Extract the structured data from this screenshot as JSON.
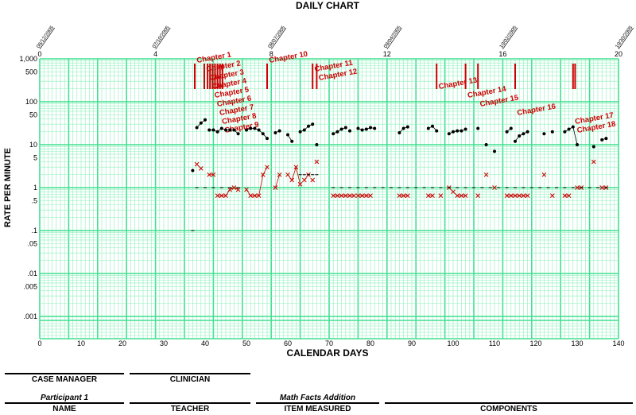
{
  "chart_data": {
    "type": "scatter",
    "title": "DAILY CHART",
    "xlabel": "CALENDAR DAYS",
    "ylabel": "RATE PER MINUTE",
    "xlim": [
      0,
      140
    ],
    "ylim": [
      0.0008,
      1000
    ],
    "y_scale": "log",
    "grid": true,
    "x_ticks": [
      0,
      10,
      20,
      30,
      40,
      50,
      60,
      70,
      80,
      90,
      100,
      110,
      120,
      130,
      140
    ],
    "y_tick_labels": [
      "1,000",
      "500",
      "100",
      "50",
      "10",
      "5",
      "1",
      ".5",
      ".1",
      ".05",
      ".01",
      ".005",
      ".001"
    ],
    "y_tick_values": [
      1000,
      500,
      100,
      50,
      10,
      5,
      1,
      0.5,
      0.1,
      0.05,
      0.01,
      0.005,
      0.001
    ],
    "week_ticks": [
      0,
      4,
      8,
      12,
      16,
      20
    ],
    "date_labels": [
      {
        "day": 0,
        "text": "06/12/2005"
      },
      {
        "day": 28,
        "text": "07/10/2005"
      },
      {
        "day": 56,
        "text": "08/07/2005"
      },
      {
        "day": 84,
        "text": "09/04/2005"
      },
      {
        "day": 112,
        "text": "10/02/2005"
      },
      {
        "day": 140,
        "text": "10/30/2005"
      }
    ],
    "phase_lines": [
      {
        "day": 37.5,
        "label": "Chapter 1"
      },
      {
        "day": 39.8,
        "label": "Chapter 2"
      },
      {
        "day": 40.6,
        "label": "Chapter 3"
      },
      {
        "day": 41.2,
        "label": "Chapter 4"
      },
      {
        "day": 41.8,
        "label": "Chapter 5"
      },
      {
        "day": 42.4,
        "label": "Chapter 6"
      },
      {
        "day": 43.0,
        "label": "Chapter 7"
      },
      {
        "day": 43.6,
        "label": "Chapter 8"
      },
      {
        "day": 44.2,
        "label": "Chapter 9"
      },
      {
        "day": 55.0,
        "label": "Chapter 10"
      },
      {
        "day": 66.0,
        "label": "Chapter 11"
      },
      {
        "day": 67.0,
        "label": "Chapter 12"
      },
      {
        "day": 96.0,
        "label": "Chapter 13"
      },
      {
        "day": 103.0,
        "label": "Chapter 14"
      },
      {
        "day": 106.0,
        "label": "Chapter 15"
      },
      {
        "day": 115.0,
        "label": "Chapter 16"
      },
      {
        "day": 129.0,
        "label": "Chapter 17"
      },
      {
        "day": 129.5,
        "label": "Chapter 18"
      }
    ],
    "series": [
      {
        "marker": "dot",
        "color": "#000000",
        "segments": [
          [
            [
              37,
              2.5
            ]
          ],
          [
            [
              38,
              25
            ],
            [
              39,
              32
            ],
            [
              40,
              38
            ]
          ],
          [
            [
              41,
              22
            ],
            [
              42,
              22
            ],
            [
              43,
              20
            ],
            [
              44,
              24
            ],
            [
              45,
              22
            ],
            [
              46,
              22
            ],
            [
              47,
              22
            ],
            [
              48,
              18
            ]
          ],
          [
            [
              50,
              22
            ],
            [
              51,
              24
            ],
            [
              52,
              24
            ],
            [
              53,
              22
            ],
            [
              54,
              18
            ],
            [
              55,
              14
            ]
          ],
          [
            [
              57,
              19
            ],
            [
              58,
              21
            ]
          ],
          [
            [
              60,
              17
            ],
            [
              61,
              12
            ]
          ],
          [
            [
              63,
              20
            ],
            [
              64,
              22
            ],
            [
              65,
              27
            ],
            [
              66,
              30
            ]
          ],
          [
            [
              67,
              10
            ]
          ],
          [
            [
              71,
              18
            ],
            [
              72,
              20
            ],
            [
              73,
              23
            ],
            [
              74,
              25
            ]
          ],
          [
            [
              75,
              21
            ]
          ],
          [
            [
              77,
              24
            ],
            [
              78,
              22
            ],
            [
              79,
              23
            ],
            [
              80,
              25
            ],
            [
              81,
              24
            ]
          ],
          [
            [
              87,
              19
            ],
            [
              88,
              24
            ],
            [
              89,
              26
            ]
          ],
          [
            [
              94,
              24
            ],
            [
              95,
              27
            ],
            [
              96,
              21
            ]
          ],
          [
            [
              99,
              18
            ],
            [
              100,
              20
            ],
            [
              101,
              21
            ],
            [
              102,
              21
            ],
            [
              103,
              23
            ]
          ],
          [
            [
              106,
              24
            ]
          ],
          [
            [
              108,
              10
            ]
          ],
          [
            [
              110,
              7
            ]
          ],
          [
            [
              113,
              20
            ],
            [
              114,
              24
            ]
          ],
          [
            [
              115,
              12
            ],
            [
              116,
              16
            ],
            [
              117,
              18
            ],
            [
              118,
              20
            ]
          ],
          [
            [
              122,
              18
            ]
          ],
          [
            [
              124,
              20
            ]
          ],
          [
            [
              127,
              20
            ],
            [
              128,
              23
            ],
            [
              129,
              26
            ],
            [
              130,
              10
            ]
          ],
          [
            [
              134,
              9
            ]
          ],
          [
            [
              136,
              13
            ],
            [
              137,
              14
            ]
          ]
        ]
      },
      {
        "marker": "x",
        "color": "#cc0000",
        "segments": [
          [
            [
              38,
              3.5
            ],
            [
              39,
              2.8
            ]
          ],
          [
            [
              41,
              2.0
            ],
            [
              42,
              2.0
            ]
          ],
          [
            [
              43,
              0.65
            ],
            [
              44,
              0.65
            ],
            [
              45,
              0.65
            ],
            [
              46,
              0.9
            ],
            [
              47,
              1.0
            ],
            [
              48,
              0.9
            ]
          ],
          [
            [
              50,
              0.9
            ],
            [
              51,
              0.65
            ],
            [
              52,
              0.65
            ],
            [
              53,
              0.65
            ],
            [
              54,
              2.0
            ],
            [
              55,
              3.0
            ]
          ],
          [
            [
              57,
              1.0
            ],
            [
              58,
              2.0
            ]
          ],
          [
            [
              60,
              2.0
            ],
            [
              61,
              1.5
            ],
            [
              62,
              3.0
            ],
            [
              63,
              1.2
            ]
          ],
          [
            [
              64,
              1.5
            ],
            [
              65,
              2.0
            ]
          ],
          [
            [
              66,
              1.5
            ]
          ],
          [
            [
              67,
              4.0
            ]
          ],
          [
            [
              71,
              0.65
            ],
            [
              72,
              0.65
            ],
            [
              73,
              0.65
            ],
            [
              74,
              0.65
            ],
            [
              75,
              0.65
            ],
            [
              76,
              0.65
            ]
          ],
          [
            [
              77,
              0.65
            ],
            [
              78,
              0.65
            ],
            [
              79,
              0.65
            ],
            [
              80,
              0.65
            ]
          ],
          [
            [
              87,
              0.65
            ],
            [
              88,
              0.65
            ],
            [
              89,
              0.65
            ]
          ],
          [
            [
              94,
              0.65
            ],
            [
              95,
              0.65
            ]
          ],
          [
            [
              97,
              0.65
            ]
          ],
          [
            [
              99,
              1.0
            ],
            [
              100,
              0.8
            ],
            [
              101,
              0.65
            ],
            [
              102,
              0.65
            ],
            [
              103,
              0.65
            ]
          ],
          [
            [
              106,
              0.65
            ]
          ],
          [
            [
              108,
              2.0
            ]
          ],
          [
            [
              110,
              1.0
            ]
          ],
          [
            [
              113,
              0.65
            ],
            [
              114,
              0.65
            ],
            [
              115,
              0.65
            ],
            [
              116,
              0.65
            ],
            [
              117,
              0.65
            ],
            [
              118,
              0.65
            ]
          ],
          [
            [
              122,
              2.0
            ]
          ],
          [
            [
              124,
              0.65
            ]
          ],
          [
            [
              127,
              0.65
            ],
            [
              128,
              0.65
            ]
          ],
          [
            [
              130,
              1.0
            ],
            [
              131,
              1.0
            ]
          ],
          [
            [
              134,
              4.0
            ]
          ],
          [
            [
              136,
              1.0
            ],
            [
              137,
              1.0
            ]
          ]
        ]
      },
      {
        "marker": "dash",
        "color": "#000000",
        "segments": [
          [
            [
              37,
              0.1
            ]
          ],
          [
            [
              38,
              1.0
            ],
            [
              40,
              1.0
            ],
            [
              42,
              1.0
            ],
            [
              44,
              1.0
            ],
            [
              46,
              1.0
            ],
            [
              48,
              1.0
            ]
          ],
          [
            [
              63,
              2.0
            ],
            [
              64,
              2.0
            ],
            [
              65,
              2.0
            ],
            [
              66,
              2.0
            ],
            [
              67,
              2.0
            ]
          ],
          [
            [
              71,
              1.0
            ],
            [
              73,
              1.0
            ],
            [
              75,
              1.0
            ],
            [
              77,
              1.0
            ],
            [
              79,
              1.0
            ],
            [
              81,
              1.0
            ],
            [
              83,
              1.0
            ],
            [
              85,
              1.0
            ],
            [
              87,
              1.0
            ],
            [
              89,
              1.0
            ],
            [
              91,
              1.0
            ],
            [
              93,
              1.0
            ],
            [
              95,
              1.0
            ],
            [
              97,
              1.0
            ],
            [
              99,
              1.0
            ],
            [
              101,
              1.0
            ],
            [
              103,
              1.0
            ],
            [
              105,
              1.0
            ],
            [
              107,
              1.0
            ],
            [
              109,
              1.0
            ],
            [
              111,
              1.0
            ],
            [
              113,
              1.0
            ],
            [
              115,
              1.0
            ],
            [
              117,
              1.0
            ],
            [
              119,
              1.0
            ],
            [
              121,
              1.0
            ],
            [
              123,
              1.0
            ],
            [
              125,
              1.0
            ],
            [
              127,
              1.0
            ],
            [
              129,
              1.0
            ],
            [
              131,
              1.0
            ],
            [
              133,
              1.0
            ],
            [
              135,
              1.0
            ],
            [
              137,
              1.0
            ]
          ]
        ]
      }
    ]
  },
  "colors": {
    "grid": "#40e090",
    "grid_minor": "#8cf0bc",
    "phase": "#cc0000",
    "dot": "#000000",
    "x_marker": "#cc0000"
  },
  "footer": {
    "case_manager_label": "CASE MANAGER",
    "clinician_label": "CLINICIAN",
    "participant": "Participant 1",
    "name_label": "NAME",
    "teacher_label": "TEACHER",
    "item_measured_value": "Math Facts Addition",
    "item_measured_label": "ITEM MEASURED",
    "components_label": "COMPONENTS"
  }
}
